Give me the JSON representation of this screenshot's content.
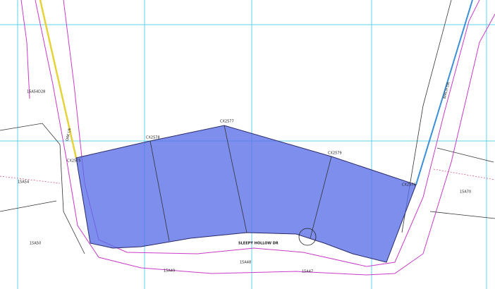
{
  "map": {
    "labels": {
      "street": "SLEEPY HOLLOW DR",
      "west_road": "OAK LN",
      "east_road": "BIRCH DR",
      "corners": [
        "CX2575",
        "CX2578",
        "CX2577",
        "CX2579",
        "CX2576"
      ],
      "parcels": [
        "15A54D28",
        "15A54",
        "15A70",
        "15A49",
        "15A48",
        "15A47",
        "15A50"
      ]
    }
  }
}
